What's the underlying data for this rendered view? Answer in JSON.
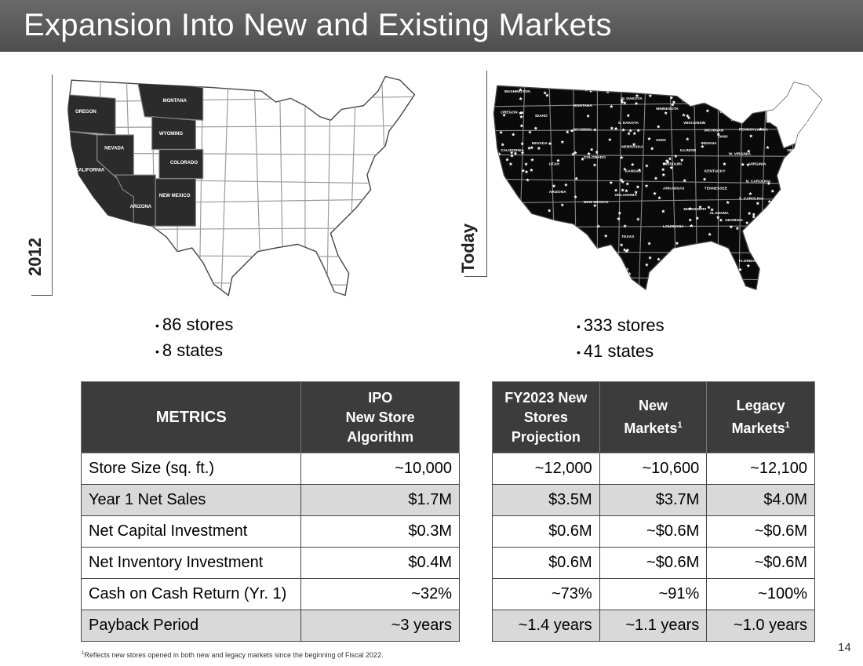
{
  "title": "Expansion Into New and Existing Markets",
  "left_panel": {
    "label": "2012",
    "bullets": [
      "86 stores",
      "8 states"
    ],
    "states": [
      "OREGON",
      "CALIFORNIA",
      "NEVADA",
      "MONTANA",
      "WYOMING",
      "COLORADO",
      "ARIZONA",
      "NEW MEXICO"
    ]
  },
  "right_panel": {
    "label": "Today",
    "bullets": [
      "333 stores",
      "41 states"
    ],
    "states": [
      "WASHINGTON",
      "OREGON",
      "CALIFORNIA",
      "NEVADA",
      "IDAHO",
      "MONTANA",
      "WYOMING",
      "UTAH",
      "COLORADO",
      "ARIZONA",
      "NEW MEXICO",
      "N. DAKOTA",
      "S. DAKOTA",
      "NEBRASKA",
      "KANSAS",
      "OKLAHOMA",
      "TEXAS",
      "MINNESOTA",
      "IOWA",
      "MISSOURI",
      "ARKANSAS",
      "LOUISIANA",
      "WISCONSIN",
      "ILLINOIS",
      "MICHIGAN",
      "INDIANA",
      "OHIO",
      "KENTUCKY",
      "TENNESSEE",
      "MISSISSIPPI",
      "ALABAMA",
      "GEORGIA",
      "FLORIDA",
      "S. CAROLINA",
      "N. CAROLINA",
      "VIRGINIA",
      "W. VIRGINIA",
      "PENNSYLVANIA",
      "NEW JERSEY",
      "DELAWARE",
      "CONNECTICUT"
    ]
  },
  "colors": {
    "header": "#4e4e4e",
    "table_header": "#3c3c3c",
    "row_alt": "#d9d9d9",
    "map_fill": "#2b2b2b"
  },
  "table_left": {
    "headers": [
      "METRICS",
      "IPO\nNew Store\nAlgorithm"
    ],
    "rows": [
      [
        "Store Size (sq. ft.)",
        "~10,000"
      ],
      [
        "Year 1 Net Sales",
        "$1.7M"
      ],
      [
        "Net Capital Investment",
        "$0.3M"
      ],
      [
        "Net Inventory Investment",
        "$0.4M"
      ],
      [
        "Cash on Cash Return (Yr. 1)",
        "~32%"
      ],
      [
        "Payback Period",
        "~3 years"
      ]
    ]
  },
  "table_right": {
    "headers": [
      "FY2023 New\nStores\nProjection",
      "New\nMarkets",
      "Legacy\nMarkets"
    ],
    "header_sup": "1",
    "rows": [
      [
        "~12,000",
        "~10,600",
        "~12,100"
      ],
      [
        "$3.5M",
        "$3.7M",
        "$4.0M"
      ],
      [
        "$0.6M",
        "~$0.6M",
        "~$0.6M"
      ],
      [
        "$0.6M",
        "~$0.6M",
        "~$0.6M"
      ],
      [
        "~73%",
        "~91%",
        "~100%"
      ],
      [
        "~1.4 years",
        "~1.1 years",
        "~1.0 years"
      ]
    ]
  },
  "footnote_sup": "1",
  "footnote": "Reflects new stores opened in both new and legacy markets since the beginning of Fiscal 2022.",
  "page_number": "14"
}
